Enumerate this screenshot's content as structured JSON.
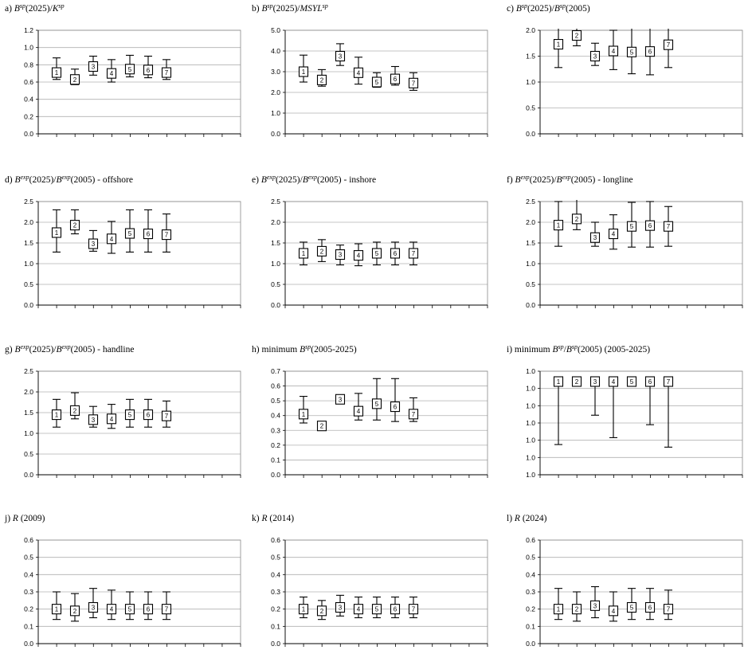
{
  "chart_data": [
    {
      "id": "a",
      "type": "box-whisker",
      "title_prefix": "a)",
      "title_parts": [
        {
          "t": "B",
          "i": true
        },
        {
          "t": "sp",
          "sup": true
        },
        {
          "t": "(2025)/"
        },
        {
          "t": "K",
          "i": true
        },
        {
          "t": "sp",
          "sup": true
        }
      ],
      "ylim": [
        0,
        1.2
      ],
      "yticks": [
        "0.0",
        "0.2",
        "0.4",
        "0.6",
        "0.8",
        "1.0",
        "1.2"
      ],
      "grid": true,
      "legend": "none",
      "series": [
        {
          "label": "1",
          "median": 0.71,
          "lower": 0.63,
          "upper": 0.88
        },
        {
          "label": "2",
          "median": 0.63,
          "lower": 0.57,
          "upper": 0.75
        },
        {
          "label": "3",
          "median": 0.78,
          "lower": 0.68,
          "upper": 0.9
        },
        {
          "label": "4",
          "median": 0.7,
          "lower": 0.6,
          "upper": 0.86
        },
        {
          "label": "5",
          "median": 0.75,
          "lower": 0.66,
          "upper": 0.91
        },
        {
          "label": "6",
          "median": 0.74,
          "lower": 0.65,
          "upper": 0.9
        },
        {
          "label": "7",
          "median": 0.71,
          "lower": 0.63,
          "upper": 0.86
        }
      ]
    },
    {
      "id": "b",
      "type": "box-whisker",
      "title_prefix": "b)",
      "title_parts": [
        {
          "t": "B",
          "i": true
        },
        {
          "t": "sp",
          "sup": true
        },
        {
          "t": "(2025)/"
        },
        {
          "t": "MSYL",
          "i": true
        },
        {
          "t": "sp",
          "sup": true
        }
      ],
      "ylim": [
        0,
        5
      ],
      "yticks": [
        "0.0",
        "1.0",
        "2.0",
        "3.0",
        "4.0",
        "5.0"
      ],
      "grid": true,
      "legend": "none",
      "series": [
        {
          "label": "1",
          "median": 3.0,
          "lower": 2.5,
          "upper": 3.8
        },
        {
          "label": "2",
          "median": 2.6,
          "lower": 2.3,
          "upper": 3.1
        },
        {
          "label": "3",
          "median": 3.75,
          "lower": 3.3,
          "upper": 4.35
        },
        {
          "label": "4",
          "median": 2.95,
          "lower": 2.4,
          "upper": 3.7
        },
        {
          "label": "5",
          "median": 2.5,
          "lower": 2.25,
          "upper": 2.95
        },
        {
          "label": "6",
          "median": 2.65,
          "lower": 2.35,
          "upper": 3.25
        },
        {
          "label": "7",
          "median": 2.45,
          "lower": 2.1,
          "upper": 2.95
        }
      ]
    },
    {
      "id": "c",
      "type": "box-whisker",
      "title_prefix": "c)",
      "title_parts": [
        {
          "t": "B",
          "i": true
        },
        {
          "t": "sp",
          "sup": true
        },
        {
          "t": "(2025)/"
        },
        {
          "t": "B",
          "i": true
        },
        {
          "t": "sp",
          "sup": true
        },
        {
          "t": "(2005)"
        }
      ],
      "ylim": [
        0,
        2
      ],
      "yticks": [
        "0.0",
        "0.5",
        "1.0",
        "1.5",
        "2.0"
      ],
      "grid": true,
      "legend": "none",
      "series": [
        {
          "label": "1",
          "median": 1.73,
          "lower": 1.28,
          "upper": 2.05
        },
        {
          "label": "2",
          "median": 1.9,
          "lower": 1.7,
          "upper": 2.05
        },
        {
          "label": "3",
          "median": 1.5,
          "lower": 1.32,
          "upper": 1.75
        },
        {
          "label": "4",
          "median": 1.6,
          "lower": 1.24,
          "upper": 2.0
        },
        {
          "label": "5",
          "median": 1.58,
          "lower": 1.16,
          "upper": 2.05
        },
        {
          "label": "6",
          "median": 1.59,
          "lower": 1.14,
          "upper": 2.05
        },
        {
          "label": "7",
          "median": 1.72,
          "lower": 1.28,
          "upper": 2.05
        }
      ]
    },
    {
      "id": "d",
      "type": "box-whisker",
      "title_prefix": "d)",
      "title_parts": [
        {
          "t": "B",
          "i": true
        },
        {
          "t": "exp",
          "sup": true
        },
        {
          "t": "(2025)/"
        },
        {
          "t": "B",
          "i": true
        },
        {
          "t": "exp",
          "sup": true
        },
        {
          "t": "(2005) - offshore"
        }
      ],
      "ylim": [
        0,
        2.5
      ],
      "yticks": [
        "0.0",
        "0.5",
        "1.0",
        "1.5",
        "2.0",
        "2.5"
      ],
      "grid": true,
      "legend": "none",
      "series": [
        {
          "label": "1",
          "median": 1.75,
          "lower": 1.28,
          "upper": 2.3
        },
        {
          "label": "2",
          "median": 1.93,
          "lower": 1.72,
          "upper": 2.3
        },
        {
          "label": "3",
          "median": 1.48,
          "lower": 1.3,
          "upper": 1.8
        },
        {
          "label": "4",
          "median": 1.6,
          "lower": 1.25,
          "upper": 2.02
        },
        {
          "label": "5",
          "median": 1.73,
          "lower": 1.28,
          "upper": 2.3
        },
        {
          "label": "6",
          "median": 1.72,
          "lower": 1.28,
          "upper": 2.3
        },
        {
          "label": "7",
          "median": 1.7,
          "lower": 1.28,
          "upper": 2.2
        }
      ]
    },
    {
      "id": "e",
      "type": "box-whisker",
      "title_prefix": "e)",
      "title_parts": [
        {
          "t": "B",
          "i": true
        },
        {
          "t": "exp",
          "sup": true
        },
        {
          "t": "(2025)/"
        },
        {
          "t": "B",
          "i": true
        },
        {
          "t": "exp",
          "sup": true
        },
        {
          "t": "(2005) - inshore"
        }
      ],
      "ylim": [
        0,
        2.5
      ],
      "yticks": [
        "0.0",
        "0.5",
        "1.0",
        "1.5",
        "2.0",
        "2.5"
      ],
      "grid": true,
      "legend": "none",
      "series": [
        {
          "label": "1",
          "median": 1.25,
          "lower": 0.97,
          "upper": 1.52
        },
        {
          "label": "2",
          "median": 1.3,
          "lower": 1.05,
          "upper": 1.58
        },
        {
          "label": "3",
          "median": 1.22,
          "lower": 0.97,
          "upper": 1.45
        },
        {
          "label": "4",
          "median": 1.2,
          "lower": 0.95,
          "upper": 1.48
        },
        {
          "label": "5",
          "median": 1.25,
          "lower": 0.97,
          "upper": 1.52
        },
        {
          "label": "6",
          "median": 1.25,
          "lower": 0.97,
          "upper": 1.52
        },
        {
          "label": "7",
          "median": 1.25,
          "lower": 0.97,
          "upper": 1.52
        }
      ]
    },
    {
      "id": "f",
      "type": "box-whisker",
      "title_prefix": "f)",
      "title_parts": [
        {
          "t": "B",
          "i": true
        },
        {
          "t": "exp",
          "sup": true
        },
        {
          "t": "(2025)/"
        },
        {
          "t": "B",
          "i": true
        },
        {
          "t": "exp",
          "sup": true
        },
        {
          "t": "(2005) - longline"
        }
      ],
      "ylim": [
        0,
        2.5
      ],
      "yticks": [
        "0.0",
        "0.5",
        "1.0",
        "1.5",
        "2.0",
        "2.5"
      ],
      "grid": true,
      "legend": "none",
      "series": [
        {
          "label": "1",
          "median": 1.93,
          "lower": 1.42,
          "upper": 2.5
        },
        {
          "label": "2",
          "median": 2.08,
          "lower": 1.82,
          "upper": 2.58
        },
        {
          "label": "3",
          "median": 1.63,
          "lower": 1.42,
          "upper": 2.0
        },
        {
          "label": "4",
          "median": 1.72,
          "lower": 1.35,
          "upper": 2.18
        },
        {
          "label": "5",
          "median": 1.9,
          "lower": 1.4,
          "upper": 2.48
        },
        {
          "label": "6",
          "median": 1.92,
          "lower": 1.4,
          "upper": 2.5
        },
        {
          "label": "7",
          "median": 1.9,
          "lower": 1.42,
          "upper": 2.38
        }
      ]
    },
    {
      "id": "g",
      "type": "box-whisker",
      "title_prefix": "g)",
      "title_parts": [
        {
          "t": "B",
          "i": true
        },
        {
          "t": "exp",
          "sup": true
        },
        {
          "t": "(2025)/"
        },
        {
          "t": "B",
          "i": true
        },
        {
          "t": "exp",
          "sup": true
        },
        {
          "t": "(2005) - handline"
        }
      ],
      "ylim": [
        0,
        2.5
      ],
      "yticks": [
        "0.0",
        "0.5",
        "1.0",
        "1.5",
        "2.0",
        "2.5"
      ],
      "grid": true,
      "legend": "none",
      "series": [
        {
          "label": "1",
          "median": 1.45,
          "lower": 1.15,
          "upper": 1.82
        },
        {
          "label": "2",
          "median": 1.55,
          "lower": 1.35,
          "upper": 1.98
        },
        {
          "label": "3",
          "median": 1.33,
          "lower": 1.15,
          "upper": 1.65
        },
        {
          "label": "4",
          "median": 1.35,
          "lower": 1.12,
          "upper": 1.7
        },
        {
          "label": "5",
          "median": 1.45,
          "lower": 1.15,
          "upper": 1.82
        },
        {
          "label": "6",
          "median": 1.45,
          "lower": 1.15,
          "upper": 1.82
        },
        {
          "label": "7",
          "median": 1.42,
          "lower": 1.15,
          "upper": 1.78
        }
      ]
    },
    {
      "id": "h",
      "type": "box-whisker",
      "title_prefix": "h)",
      "title_parts": [
        {
          "t": "minimum "
        },
        {
          "t": "B",
          "i": true
        },
        {
          "t": "sp",
          "sup": true
        },
        {
          "t": "(2005-2025)"
        }
      ],
      "ylim": [
        0,
        0.7
      ],
      "yticks": [
        "0.0",
        "0.1",
        "0.2",
        "0.3",
        "0.4",
        "0.5",
        "0.6",
        "0.7"
      ],
      "grid": true,
      "legend": "none",
      "series": [
        {
          "label": "1",
          "median": 0.41,
          "lower": 0.35,
          "upper": 0.53
        },
        {
          "label": "2",
          "median": 0.33,
          "lower": 0.33,
          "upper": 0.33
        },
        {
          "label": "3",
          "median": 0.51,
          "lower": 0.51,
          "upper": 0.51
        },
        {
          "label": "4",
          "median": 0.43,
          "lower": 0.37,
          "upper": 0.55
        },
        {
          "label": "5",
          "median": 0.48,
          "lower": 0.37,
          "upper": 0.65
        },
        {
          "label": "6",
          "median": 0.46,
          "lower": 0.36,
          "upper": 0.65
        },
        {
          "label": "7",
          "median": 0.41,
          "lower": 0.36,
          "upper": 0.52
        }
      ]
    },
    {
      "id": "i",
      "type": "box-whisker",
      "title_prefix": "i)",
      "title_parts": [
        {
          "t": "minimum "
        },
        {
          "t": "B",
          "i": true
        },
        {
          "t": "sp",
          "sup": true
        },
        {
          "t": "/"
        },
        {
          "t": "B",
          "i": true
        },
        {
          "t": "sp",
          "sup": true
        },
        {
          "t": "(2005) (2005-2025)"
        }
      ],
      "ylim": [
        0.99994,
        1.00006
      ],
      "yticks": [
        "1.0",
        "1.0",
        "1.0",
        "1.0",
        "1.0",
        "1.0",
        "1.0"
      ],
      "grid": true,
      "legend": "none",
      "series": [
        {
          "label": "1",
          "median": 1.000048,
          "lower": 0.999975,
          "upper": 1.000049
        },
        {
          "label": "2",
          "median": 1.000048,
          "lower": 1.000043,
          "upper": 1.000049
        },
        {
          "label": "3",
          "median": 1.000048,
          "lower": 1.000009,
          "upper": 1.000049
        },
        {
          "label": "4",
          "median": 1.000048,
          "lower": 0.999983,
          "upper": 1.000049
        },
        {
          "label": "5",
          "median": 1.000048,
          "lower": 1.000048,
          "upper": 1.000049
        },
        {
          "label": "6",
          "median": 1.000048,
          "lower": 0.999998,
          "upper": 1.000049
        },
        {
          "label": "7",
          "median": 1.000048,
          "lower": 0.999972,
          "upper": 1.000049
        }
      ]
    },
    {
      "id": "j",
      "type": "box-whisker",
      "title_prefix": "j)",
      "title_parts": [
        {
          "t": "R",
          "i": true
        },
        {
          "t": " (2009)"
        }
      ],
      "ylim": [
        0,
        0.6
      ],
      "yticks": [
        "0.0",
        "0.1",
        "0.2",
        "0.3",
        "0.4",
        "0.5",
        "0.6"
      ],
      "grid": true,
      "legend": "none",
      "series": [
        {
          "label": "1",
          "median": 0.2,
          "lower": 0.14,
          "upper": 0.3
        },
        {
          "label": "2",
          "median": 0.19,
          "lower": 0.13,
          "upper": 0.29
        },
        {
          "label": "3",
          "median": 0.21,
          "lower": 0.15,
          "upper": 0.32
        },
        {
          "label": "4",
          "median": 0.2,
          "lower": 0.14,
          "upper": 0.31
        },
        {
          "label": "5",
          "median": 0.2,
          "lower": 0.14,
          "upper": 0.3
        },
        {
          "label": "6",
          "median": 0.2,
          "lower": 0.14,
          "upper": 0.3
        },
        {
          "label": "7",
          "median": 0.2,
          "lower": 0.14,
          "upper": 0.3
        }
      ]
    },
    {
      "id": "k",
      "type": "box-whisker",
      "title_prefix": "k)",
      "title_parts": [
        {
          "t": "R",
          "i": true
        },
        {
          "t": " (2014)"
        }
      ],
      "ylim": [
        0,
        0.6
      ],
      "yticks": [
        "0.0",
        "0.1",
        "0.2",
        "0.3",
        "0.4",
        "0.5",
        "0.6"
      ],
      "grid": true,
      "legend": "none",
      "series": [
        {
          "label": "1",
          "median": 0.2,
          "lower": 0.15,
          "upper": 0.27
        },
        {
          "label": "2",
          "median": 0.19,
          "lower": 0.14,
          "upper": 0.25
        },
        {
          "label": "3",
          "median": 0.21,
          "lower": 0.16,
          "upper": 0.28
        },
        {
          "label": "4",
          "median": 0.2,
          "lower": 0.15,
          "upper": 0.27
        },
        {
          "label": "5",
          "median": 0.2,
          "lower": 0.15,
          "upper": 0.27
        },
        {
          "label": "6",
          "median": 0.2,
          "lower": 0.15,
          "upper": 0.27
        },
        {
          "label": "7",
          "median": 0.2,
          "lower": 0.15,
          "upper": 0.27
        }
      ]
    },
    {
      "id": "l",
      "type": "box-whisker",
      "title_prefix": "l)",
      "title_parts": [
        {
          "t": "R",
          "i": true
        },
        {
          "t": " (2024)"
        }
      ],
      "ylim": [
        0,
        0.6
      ],
      "yticks": [
        "0.0",
        "0.1",
        "0.2",
        "0.3",
        "0.4",
        "0.5",
        "0.6"
      ],
      "grid": true,
      "legend": "none",
      "series": [
        {
          "label": "1",
          "median": 0.2,
          "lower": 0.14,
          "upper": 0.32
        },
        {
          "label": "2",
          "median": 0.2,
          "lower": 0.13,
          "upper": 0.3
        },
        {
          "label": "3",
          "median": 0.22,
          "lower": 0.15,
          "upper": 0.33
        },
        {
          "label": "4",
          "median": 0.19,
          "lower": 0.13,
          "upper": 0.3
        },
        {
          "label": "5",
          "median": 0.21,
          "lower": 0.14,
          "upper": 0.32
        },
        {
          "label": "6",
          "median": 0.21,
          "lower": 0.14,
          "upper": 0.32
        },
        {
          "label": "7",
          "median": 0.2,
          "lower": 0.14,
          "upper": 0.31
        }
      ]
    }
  ]
}
